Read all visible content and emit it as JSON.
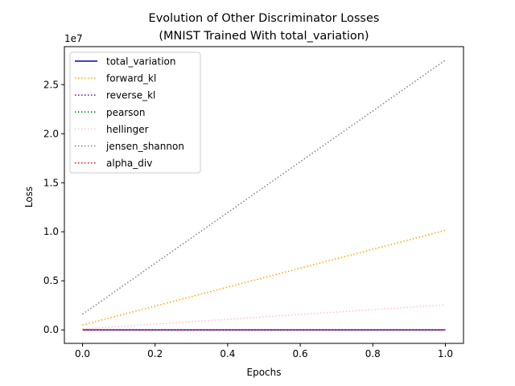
{
  "chart_data": {
    "type": "line",
    "title_line1": "Evolution of Other Discriminator Losses",
    "title_line2": "(MNIST Trained With total_variation)",
    "xlabel": "Epochs",
    "ylabel": "Loss",
    "y_multiplier": "1e7",
    "xlim": [
      -0.05,
      1.05
    ],
    "ylim": [
      -1375000,
      28875000
    ],
    "x_ticks": [
      0.0,
      0.2,
      0.4,
      0.6,
      0.8,
      1.0
    ],
    "x_tick_labels": [
      "0.0",
      "0.2",
      "0.4",
      "0.6",
      "0.8",
      "1.0"
    ],
    "y_ticks": [
      0,
      5000000,
      10000000,
      15000000,
      20000000,
      25000000
    ],
    "y_tick_labels": [
      "0.0",
      "0.5",
      "1.0",
      "1.5",
      "2.0",
      "2.5"
    ],
    "legend_position": "top-left",
    "series": [
      {
        "name": "total_variation",
        "color": "#0000cc",
        "style": "solid",
        "x": [
          0,
          1
        ],
        "y": [
          0,
          0
        ]
      },
      {
        "name": "forward_kl",
        "color": "#ffa500",
        "style": "dotted",
        "x": [
          0,
          1
        ],
        "y": [
          500000,
          10150000
        ]
      },
      {
        "name": "reverse_kl",
        "color": "#800080",
        "style": "dotted",
        "x": [
          0,
          1
        ],
        "y": [
          0,
          0
        ]
      },
      {
        "name": "pearson",
        "color": "#008000",
        "style": "dotted",
        "x": [
          0,
          1
        ],
        "y": [
          0,
          0
        ]
      },
      {
        "name": "hellinger",
        "color": "#ffc0cb",
        "style": "dotted",
        "x": [
          0,
          1
        ],
        "y": [
          100000,
          2550000
        ]
      },
      {
        "name": "jensen_shannon",
        "color": "#808080",
        "style": "dotted",
        "x": [
          0,
          1
        ],
        "y": [
          1600000,
          27500000
        ]
      },
      {
        "name": "alpha_div",
        "color": "#ff0000",
        "style": "dotted",
        "x": [
          0,
          1
        ],
        "y": [
          0,
          0
        ]
      }
    ]
  }
}
